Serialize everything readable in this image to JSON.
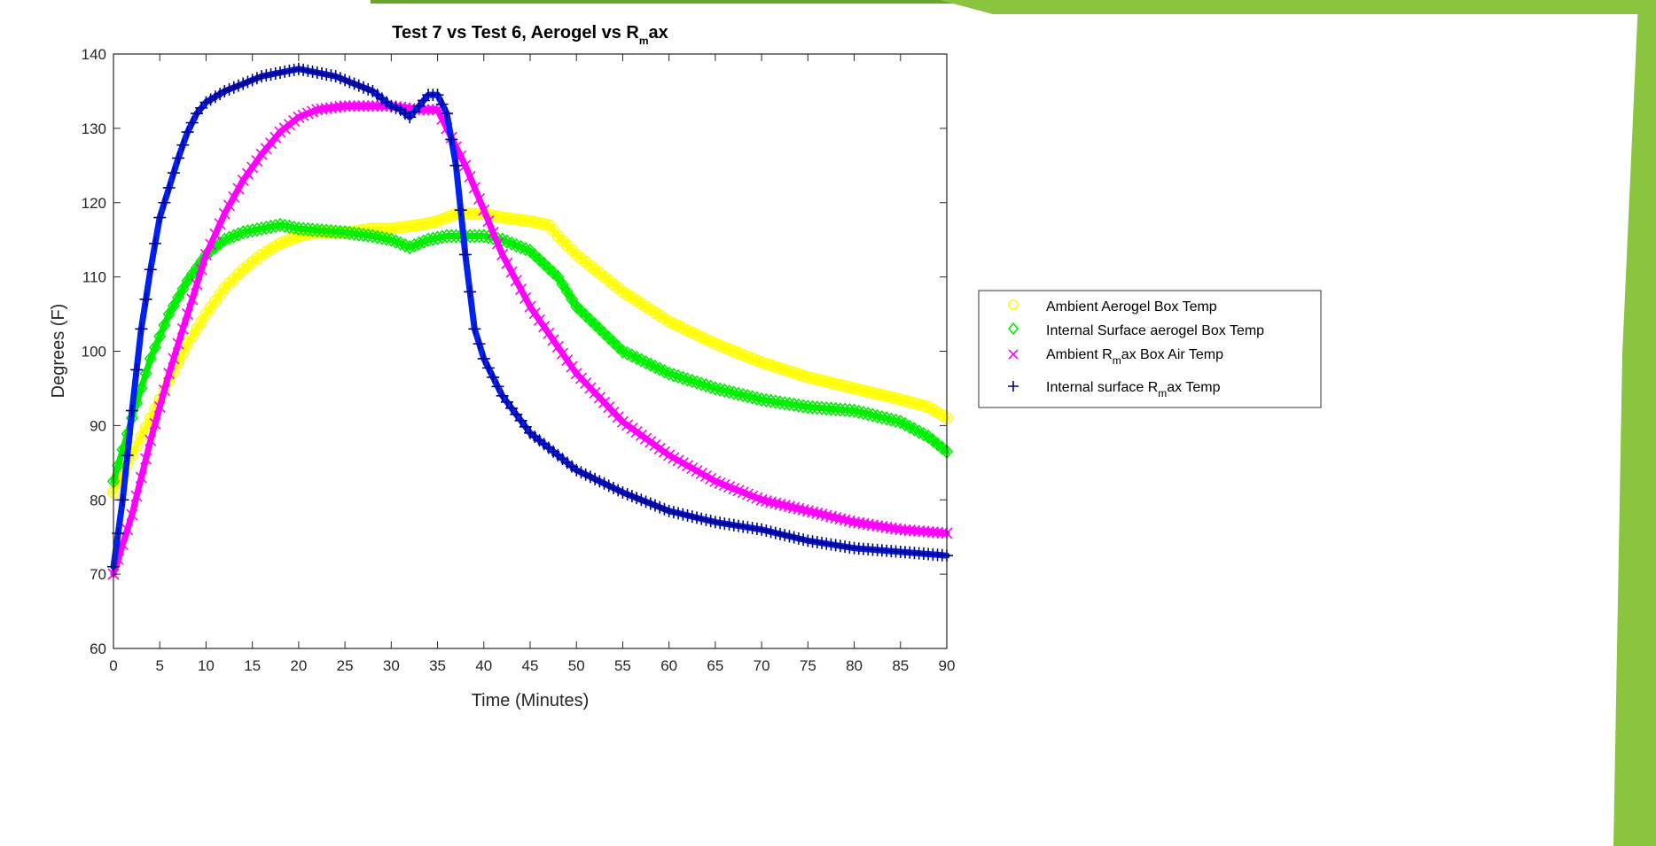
{
  "chart_data": {
    "type": "scatter",
    "title": {
      "prefix": "Test 7 vs Test 6, Aerogel vs R",
      "sub": "m",
      "suffix": "ax"
    },
    "xlabel": "Time (Minutes)",
    "ylabel": "Degrees (F)",
    "xlim": [
      0,
      90
    ],
    "ylim": [
      60,
      140
    ],
    "xticks": [
      "0",
      "5",
      "10",
      "15",
      "20",
      "25",
      "30",
      "35",
      "40",
      "45",
      "50",
      "55",
      "60",
      "65",
      "70",
      "75",
      "80",
      "85",
      "90"
    ],
    "yticks": [
      "60",
      "70",
      "80",
      "90",
      "100",
      "110",
      "120",
      "130",
      "140"
    ],
    "grid": false,
    "legend_position": "outside-right",
    "series": [
      {
        "key": "ambient-aerogel",
        "legend_prefix": "Ambient Aerogel Box Temp",
        "legend_sub": "",
        "legend_suffix": "",
        "marker": "circle",
        "color": "#ffff00",
        "points": [
          [
            0,
            81
          ],
          [
            2,
            86
          ],
          [
            4,
            91
          ],
          [
            6,
            96
          ],
          [
            8,
            101
          ],
          [
            10,
            105
          ],
          [
            12,
            108.5
          ],
          [
            14,
            111
          ],
          [
            16,
            113
          ],
          [
            18,
            114.5
          ],
          [
            20,
            115.5
          ],
          [
            22,
            116
          ],
          [
            25,
            116
          ],
          [
            28,
            116.5
          ],
          [
            30,
            116.5
          ],
          [
            33,
            117
          ],
          [
            35,
            117.5
          ],
          [
            37,
            118.5
          ],
          [
            40,
            118.5
          ],
          [
            42,
            118
          ],
          [
            45,
            117.5
          ],
          [
            47,
            117
          ],
          [
            48,
            115.5
          ],
          [
            50,
            113
          ],
          [
            55,
            108
          ],
          [
            60,
            104
          ],
          [
            65,
            101
          ],
          [
            70,
            98.5
          ],
          [
            75,
            96.5
          ],
          [
            80,
            95
          ],
          [
            85,
            93.5
          ],
          [
            88,
            92.5
          ],
          [
            90,
            91
          ]
        ]
      },
      {
        "key": "internal-aerogel",
        "legend_prefix": "Internal Surface aerogel Box Temp",
        "legend_sub": "",
        "legend_suffix": "",
        "marker": "diamond",
        "color": "#00ee00",
        "points": [
          [
            0,
            82.5
          ],
          [
            2,
            91
          ],
          [
            4,
            99
          ],
          [
            6,
            105
          ],
          [
            8,
            109.5
          ],
          [
            10,
            113
          ],
          [
            12,
            115
          ],
          [
            14,
            116
          ],
          [
            16,
            116.5
          ],
          [
            18,
            117
          ],
          [
            20,
            116.5
          ],
          [
            25,
            116
          ],
          [
            28,
            115.5
          ],
          [
            30,
            115
          ],
          [
            32,
            114
          ],
          [
            34,
            115
          ],
          [
            36,
            115.5
          ],
          [
            38,
            115.5
          ],
          [
            40,
            115.5
          ],
          [
            42,
            115
          ],
          [
            45,
            113.5
          ],
          [
            48,
            110
          ],
          [
            50,
            106
          ],
          [
            55,
            100
          ],
          [
            60,
            97
          ],
          [
            65,
            95
          ],
          [
            70,
            93.5
          ],
          [
            75,
            92.5
          ],
          [
            80,
            92
          ],
          [
            85,
            90.5
          ],
          [
            88,
            88.5
          ],
          [
            90,
            86.5
          ]
        ]
      },
      {
        "key": "ambient-rmax",
        "legend_prefix": "Ambient R",
        "legend_sub": "m",
        "legend_suffix": "ax Box Air Temp",
        "marker": "x",
        "color": "#ff00ff",
        "points": [
          [
            0,
            70
          ],
          [
            2,
            78
          ],
          [
            4,
            88
          ],
          [
            6,
            97
          ],
          [
            8,
            105
          ],
          [
            10,
            113
          ],
          [
            12,
            118.5
          ],
          [
            14,
            123
          ],
          [
            16,
            126.5
          ],
          [
            18,
            129.5
          ],
          [
            20,
            131.5
          ],
          [
            22,
            132.5
          ],
          [
            25,
            133
          ],
          [
            30,
            133
          ],
          [
            33,
            132.5
          ],
          [
            35,
            132.5
          ],
          [
            36,
            130
          ],
          [
            38,
            125
          ],
          [
            40,
            119
          ],
          [
            42,
            113
          ],
          [
            45,
            106
          ],
          [
            50,
            97
          ],
          [
            55,
            90.5
          ],
          [
            60,
            86
          ],
          [
            65,
            82.5
          ],
          [
            70,
            80
          ],
          [
            75,
            78.5
          ],
          [
            80,
            77
          ],
          [
            85,
            76
          ],
          [
            90,
            75.5
          ]
        ]
      },
      {
        "key": "internal-rmax",
        "legend_prefix": "Internal surface R",
        "legend_sub": "m",
        "legend_suffix": "ax Temp",
        "marker": "plus",
        "color": "#000090",
        "line_color": "#0022ee",
        "points": [
          [
            0,
            71
          ],
          [
            1,
            80
          ],
          [
            2,
            92
          ],
          [
            3,
            103
          ],
          [
            4,
            111
          ],
          [
            5,
            118
          ],
          [
            6,
            122
          ],
          [
            7,
            126
          ],
          [
            8,
            129.5
          ],
          [
            9,
            132
          ],
          [
            10,
            133.5
          ],
          [
            12,
            135
          ],
          [
            14,
            136
          ],
          [
            16,
            137
          ],
          [
            18,
            137.5
          ],
          [
            20,
            138
          ],
          [
            22,
            137.5
          ],
          [
            24,
            137
          ],
          [
            26,
            136
          ],
          [
            28,
            135
          ],
          [
            30,
            133
          ],
          [
            31,
            132.5
          ],
          [
            32,
            131.5
          ],
          [
            33,
            133
          ],
          [
            34,
            134.5
          ],
          [
            35,
            134.5
          ],
          [
            36,
            132
          ],
          [
            37,
            125
          ],
          [
            38,
            113
          ],
          [
            39,
            103
          ],
          [
            40,
            99
          ],
          [
            42,
            94
          ],
          [
            45,
            89
          ],
          [
            48,
            86
          ],
          [
            50,
            84
          ],
          [
            55,
            81
          ],
          [
            60,
            78.5
          ],
          [
            65,
            77
          ],
          [
            70,
            76
          ],
          [
            75,
            74.5
          ],
          [
            80,
            73.5
          ],
          [
            85,
            73
          ],
          [
            90,
            72.5
          ]
        ]
      }
    ]
  }
}
